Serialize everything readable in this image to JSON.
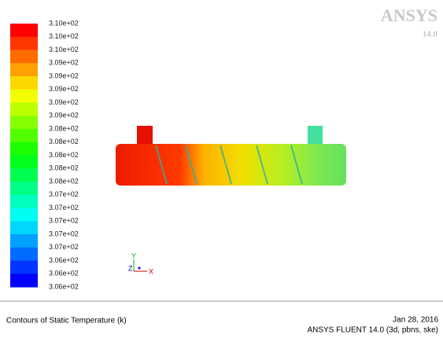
{
  "logo": {
    "brand": "ANSYS",
    "version": "14.0"
  },
  "colorbar": {
    "labels": [
      "3.10e+02",
      "3.10e+02",
      "3.10e+02",
      "3.09e+02",
      "3.09e+02",
      "3.09e+02",
      "3.09e+02",
      "3.09e+02",
      "3.08e+02",
      "3.08e+02",
      "3.08e+02",
      "3.08e+02",
      "3.08e+02",
      "3.07e+02",
      "3.07e+02",
      "3.07e+02",
      "3.07e+02",
      "3.07e+02",
      "3.06e+02",
      "3.06e+02",
      "3.06e+02"
    ]
  },
  "axes": {
    "y": "Y",
    "z": "Z",
    "x": "X"
  },
  "footer": {
    "title": "Contours of Static Temperature (k)",
    "date": "Jan 28, 2016",
    "product": "ANSYS FLUENT 14.0 (3d, pbns, ske)"
  }
}
